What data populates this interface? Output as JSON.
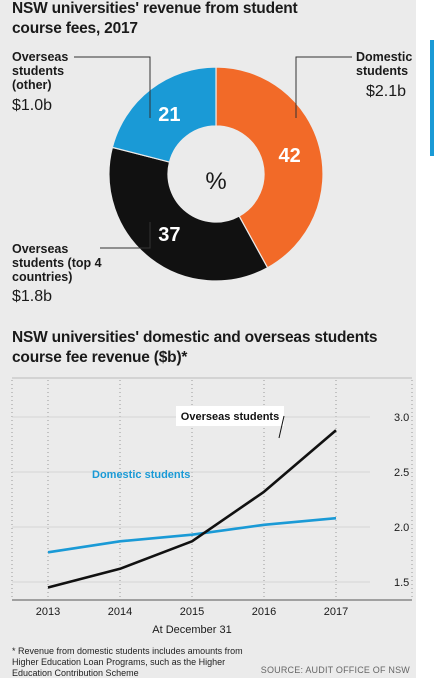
{
  "chart_data": [
    {
      "type": "pie",
      "title": "NSW universities' revenue from student course fees, 2017",
      "center_label": "%",
      "slices": [
        {
          "name": "Domestic students",
          "value": 42,
          "amount": "$2.1b",
          "color": "#f26a28"
        },
        {
          "name": "Overseas students (top 4 countries)",
          "value": 37,
          "amount": "$1.8b",
          "color": "#111111"
        },
        {
          "name": "Overseas students (other)",
          "value": 21,
          "amount": "$1.0b",
          "color": "#1a9ad6"
        }
      ]
    },
    {
      "type": "line",
      "title": "NSW universities' domestic and overseas students course fee revenue ($b)*",
      "xlabel": "At December 31",
      "categories": [
        "2013",
        "2014",
        "2015",
        "2016",
        "2017"
      ],
      "ylim": [
        1.2,
        3.1
      ],
      "yticks": [
        "1.5",
        "2.0",
        "2.5",
        "3.0"
      ],
      "grid": "vertical dotted",
      "series": [
        {
          "name": "Domestic students",
          "color": "#1a9ad6",
          "values": [
            1.77,
            1.87,
            1.93,
            2.02,
            2.08
          ]
        },
        {
          "name": "Overseas students",
          "color": "#111111",
          "values": [
            1.45,
            1.62,
            1.87,
            2.32,
            2.88
          ]
        }
      ]
    }
  ],
  "labels": {
    "domestic_name": "Domestic students",
    "domestic_amount": "$2.1b",
    "overseas_other_name": "Overseas students (other)",
    "overseas_other_amount": "$1.0b",
    "overseas_top4_name": "Overseas students (top 4 countries)",
    "overseas_top4_amount": "$1.8b"
  },
  "footnote": "* Revenue from domestic students includes amounts from Higher Education Loan Programs, such as the Higher Education Contribution Scheme",
  "source": "SOURCE: AUDIT OFFICE OF NSW"
}
